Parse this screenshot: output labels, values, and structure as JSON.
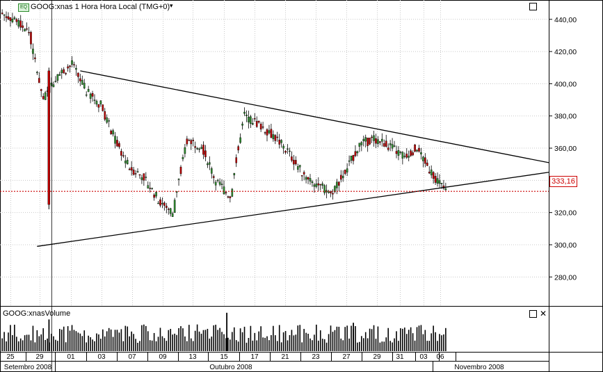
{
  "chart": {
    "price_title": "GOOG:xnas 1 Hora Hora Local (TMG+0)",
    "volume_title": "GOOG:xnasVolume",
    "last_price": "333,16"
  },
  "colors": {
    "up_candle": "#2f8f2f",
    "down_candle": "#c00000",
    "last_price_line": "#cc0000",
    "grid": "#c8c8c8",
    "trendline": "#000000"
  },
  "chart_data": [
    {
      "type": "candlestick",
      "title": "GOOG:xnas 1 Hora Hora Local (TMG+0)",
      "ylim": [
        262,
        452
      ],
      "y_ticks": [
        "440,00",
        "420,00",
        "400,00",
        "380,00",
        "360,00",
        "340,00",
        "320,00",
        "300,00",
        "280,00"
      ],
      "y_tick_values": [
        440,
        420,
        400,
        380,
        360,
        340,
        320,
        300,
        280
      ],
      "x_ticks": [
        "25",
        "29",
        "01",
        "03",
        "07",
        "09",
        "13",
        "15",
        "17",
        "21",
        "23",
        "27",
        "29",
        "31",
        "03",
        "06"
      ],
      "x_month_labels": [
        "Setembro 2008",
        "Outubro 2008",
        "Novembro 2008"
      ],
      "last_price": 333.16,
      "approx_daily_closes": [
        {
          "date": "2008-09-25",
          "close": 440
        },
        {
          "date": "2008-09-26",
          "close": 432
        },
        {
          "date": "2008-09-29",
          "close": 390
        },
        {
          "date": "2008-09-30",
          "close": 405
        },
        {
          "date": "2008-10-01",
          "close": 412
        },
        {
          "date": "2008-10-02",
          "close": 395
        },
        {
          "date": "2008-10-03",
          "close": 387
        },
        {
          "date": "2008-10-06",
          "close": 365
        },
        {
          "date": "2008-10-07",
          "close": 348
        },
        {
          "date": "2008-10-08",
          "close": 342
        },
        {
          "date": "2008-10-09",
          "close": 328
        },
        {
          "date": "2008-10-10",
          "close": 320
        },
        {
          "date": "2008-10-13",
          "close": 365
        },
        {
          "date": "2008-10-14",
          "close": 362
        },
        {
          "date": "2008-10-15",
          "close": 340
        },
        {
          "date": "2008-10-16",
          "close": 330
        },
        {
          "date": "2008-10-17",
          "close": 380
        },
        {
          "date": "2008-10-20",
          "close": 375
        },
        {
          "date": "2008-10-21",
          "close": 368
        },
        {
          "date": "2008-10-22",
          "close": 358
        },
        {
          "date": "2008-10-23",
          "close": 345
        },
        {
          "date": "2008-10-24",
          "close": 338
        },
        {
          "date": "2008-10-27",
          "close": 332
        },
        {
          "date": "2008-10-28",
          "close": 345
        },
        {
          "date": "2008-10-29",
          "close": 362
        },
        {
          "date": "2008-10-30",
          "close": 366
        },
        {
          "date": "2008-10-31",
          "close": 362
        },
        {
          "date": "2008-11-03",
          "close": 355
        },
        {
          "date": "2008-11-04",
          "close": 360
        },
        {
          "date": "2008-11-05",
          "close": 345
        },
        {
          "date": "2008-11-06",
          "close": 333.16
        }
      ],
      "trendlines": [
        {
          "name": "upper",
          "from": {
            "date": "2008-10-02",
            "price": 408
          },
          "to": {
            "date": "2008-11-10",
            "price": 351
          }
        },
        {
          "name": "lower",
          "from": {
            "date": "2008-09-29",
            "price": 299
          },
          "to": {
            "date": "2008-11-10",
            "price": 345
          }
        }
      ]
    },
    {
      "type": "bar",
      "title": "GOOG:xnasVolume",
      "grid": false,
      "note_values_relative": true
    }
  ]
}
